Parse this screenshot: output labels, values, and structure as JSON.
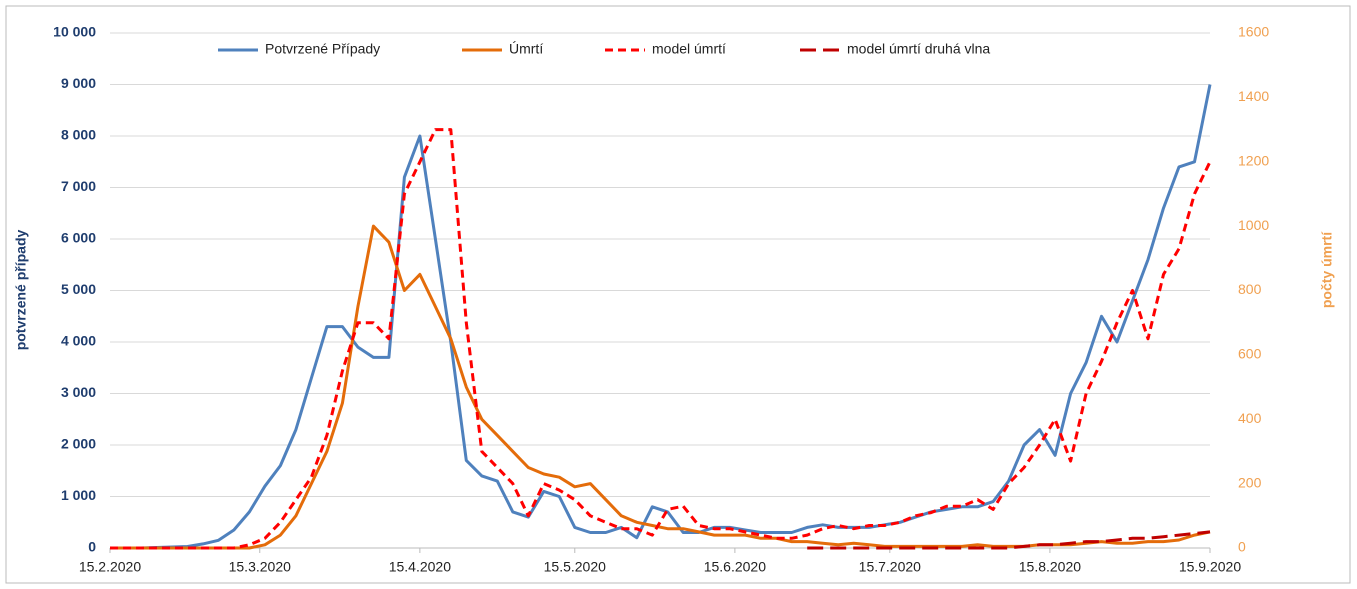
{
  "chart_data": {
    "type": "line",
    "y_label": "potvrzené případy",
    "y2_label": "počty úmrtí",
    "legend": "top",
    "grid": true,
    "x": [
      "15.2.2020",
      "18.2.2020",
      "21.2.2020",
      "24.2.2020",
      "27.2.2020",
      "1.3.2020",
      "4.3.2020",
      "7.3.2020",
      "10.3.2020",
      "13.3.2020",
      "16.3.2020",
      "19.3.2020",
      "22.3.2020",
      "25.3.2020",
      "28.3.2020",
      "31.3.2020",
      "3.4.2020",
      "6.4.2020",
      "9.4.2020",
      "12.4.2020",
      "15.4.2020",
      "18.4.2020",
      "21.4.2020",
      "24.4.2020",
      "27.4.2020",
      "30.4.2020",
      "3.5.2020",
      "6.5.2020",
      "9.5.2020",
      "12.5.2020",
      "15.5.2020",
      "18.5.2020",
      "21.5.2020",
      "24.5.2020",
      "27.5.2020",
      "30.5.2020",
      "2.6.2020",
      "5.6.2020",
      "8.6.2020",
      "11.6.2020",
      "14.6.2020",
      "17.6.2020",
      "20.6.2020",
      "23.6.2020",
      "26.6.2020",
      "29.6.2020",
      "2.7.2020",
      "5.7.2020",
      "8.7.2020",
      "11.7.2020",
      "14.7.2020",
      "17.7.2020",
      "20.7.2020",
      "23.7.2020",
      "26.7.2020",
      "29.7.2020",
      "1.8.2020",
      "4.8.2020",
      "7.8.2020",
      "10.8.2020",
      "13.8.2020",
      "16.8.2020",
      "19.8.2020",
      "22.8.2020",
      "25.8.2020",
      "28.8.2020",
      "31.8.2020",
      "3.9.2020",
      "6.9.2020",
      "9.9.2020",
      "12.9.2020",
      "15.9.2020"
    ],
    "xlim": [
      "15.2.2020",
      "15.9.2020"
    ],
    "xticks": [
      "15.2.2020",
      "15.3.2020",
      "15.4.2020",
      "15.5.2020",
      "15.6.2020",
      "15.7.2020",
      "15.8.2020",
      "15.9.2020"
    ],
    "ylim": [
      0,
      10000
    ],
    "yticks": [
      0,
      {
        "value": 1000,
        "label": "1 000"
      },
      {
        "value": 2000,
        "label": "2 000"
      },
      {
        "value": 3000,
        "label": "3 000"
      },
      {
        "value": 4000,
        "label": "4 000"
      },
      {
        "value": 5000,
        "label": "5 000"
      },
      {
        "value": 6000,
        "label": "6 000"
      },
      {
        "value": 7000,
        "label": "7 000"
      },
      {
        "value": 8000,
        "label": "8 000"
      },
      {
        "value": 9000,
        "label": "9 000"
      },
      {
        "value": 10000,
        "label": "10 000"
      }
    ],
    "y2lim": [
      0,
      1600
    ],
    "y2ticks": [
      0,
      200,
      400,
      600,
      800,
      1000,
      1200,
      1400,
      1600
    ],
    "series": [
      {
        "name": "Potvrzené Případy",
        "color": "#4f81bd",
        "line_style": "solid",
        "values": [
          0,
          0,
          0,
          10,
          20,
          30,
          80,
          150,
          350,
          700,
          1200,
          1600,
          2300,
          3300,
          4300,
          4300,
          3900,
          3700,
          3700,
          7200,
          8000,
          6000,
          4000,
          1700,
          1400,
          1300,
          700,
          600,
          1100,
          1000,
          400,
          300,
          300,
          400,
          200,
          800,
          700,
          300,
          300,
          400,
          400,
          350,
          300,
          300,
          300,
          400,
          450,
          400,
          400,
          400,
          450,
          500,
          600,
          700,
          750,
          800,
          800,
          900,
          1300,
          2000,
          2300,
          1800,
          3000,
          3600,
          4500,
          4000,
          4800,
          5600,
          6600,
          7400,
          7500,
          9000
        ]
      },
      {
        "name": "Úmrtí",
        "color": "#e46c0a",
        "line_style": "solid",
        "axis": "y2",
        "values": [
          0,
          0,
          0,
          0,
          0,
          0,
          0,
          0,
          0,
          0,
          10,
          40,
          100,
          200,
          300,
          450,
          750,
          1000,
          950,
          800,
          850,
          750,
          650,
          500,
          400,
          350,
          300,
          250,
          230,
          220,
          190,
          200,
          150,
          100,
          80,
          70,
          60,
          60,
          50,
          40,
          40,
          40,
          30,
          30,
          20,
          20,
          15,
          10,
          15,
          10,
          5,
          5,
          5,
          5,
          5,
          5,
          10,
          5,
          5,
          5,
          10,
          10,
          10,
          15,
          20,
          15,
          15,
          20,
          20,
          25,
          40,
          50
        ]
      },
      {
        "name": "model úmrtí",
        "color": "#ff0000",
        "line_style": "dashed",
        "axis": "y2",
        "values": [
          0,
          0,
          0,
          0,
          0,
          0,
          0,
          0,
          0,
          10,
          30,
          80,
          150,
          220,
          350,
          550,
          700,
          700,
          650,
          1100,
          1200,
          1300,
          1300,
          700,
          300,
          250,
          200,
          100,
          200,
          180,
          150,
          100,
          80,
          60,
          60,
          40,
          120,
          130,
          70,
          60,
          60,
          50,
          40,
          30,
          30,
          40,
          60,
          70,
          60,
          70,
          70,
          80,
          100,
          110,
          130,
          130,
          150,
          120,
          200,
          250,
          320,
          400,
          270,
          480,
          580,
          700,
          800,
          650,
          850,
          930,
          1100,
          1200
        ]
      },
      {
        "name": "model úmrtí druhá vlna",
        "color": "#c00000",
        "line_style": "long-dashed",
        "axis": "y2",
        "values": [
          null,
          null,
          null,
          null,
          null,
          null,
          null,
          null,
          null,
          null,
          null,
          null,
          null,
          null,
          null,
          null,
          null,
          null,
          null,
          null,
          null,
          null,
          null,
          null,
          null,
          null,
          null,
          null,
          null,
          null,
          null,
          null,
          null,
          null,
          null,
          null,
          null,
          null,
          null,
          null,
          null,
          null,
          null,
          null,
          null,
          0,
          0,
          0,
          0,
          0,
          0,
          0,
          0,
          0,
          0,
          0,
          0,
          0,
          0,
          5,
          10,
          10,
          15,
          20,
          20,
          25,
          30,
          30,
          35,
          40,
          45,
          50
        ]
      }
    ]
  }
}
